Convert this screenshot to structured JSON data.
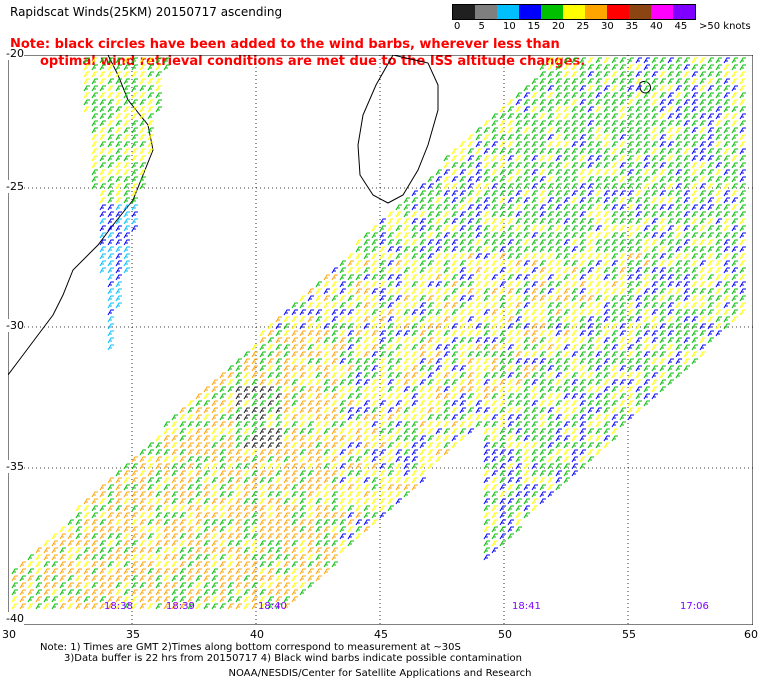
{
  "title": "Rapidscat Winds(25KM) 20150717 ascending",
  "note": {
    "line1": "Note: black circles have been added to the wind barbs, wherever less than",
    "line2": "optimal wind retrieval conditions are met due to the ISS altitude changes."
  },
  "legend": {
    "labels": [
      "0",
      "5",
      "10",
      "15",
      "20",
      "25",
      "30",
      "35",
      "40",
      "45",
      ">50 knots"
    ],
    "colors": [
      "#202020",
      "#7f7f7f",
      "#00bfff",
      "#0000ff",
      "#00c000",
      "#ffff00",
      "#ffa500",
      "#ff0000",
      "#8b4513",
      "#ff00ff",
      "#7f00ff"
    ]
  },
  "axes": {
    "lat_labels": [
      "-20",
      "-25",
      "-30",
      "-35",
      "-40"
    ],
    "lon_labels": [
      "30",
      "35",
      "40",
      "45",
      "50",
      "55",
      "60"
    ]
  },
  "time_labels": [
    "18:38",
    "18:39",
    "18:40",
    "18:41",
    "17:06"
  ],
  "footer": {
    "line1": "Note: 1) Times are GMT 2)Times along bottom correspond to measurement at ~30S",
    "line2": "3)Data buffer is 22 hrs from 20150717 4) Black wind barbs indicate possible contamination",
    "credit": "NOAA/NESDIS/Center for Satellite Applications and Research"
  }
}
